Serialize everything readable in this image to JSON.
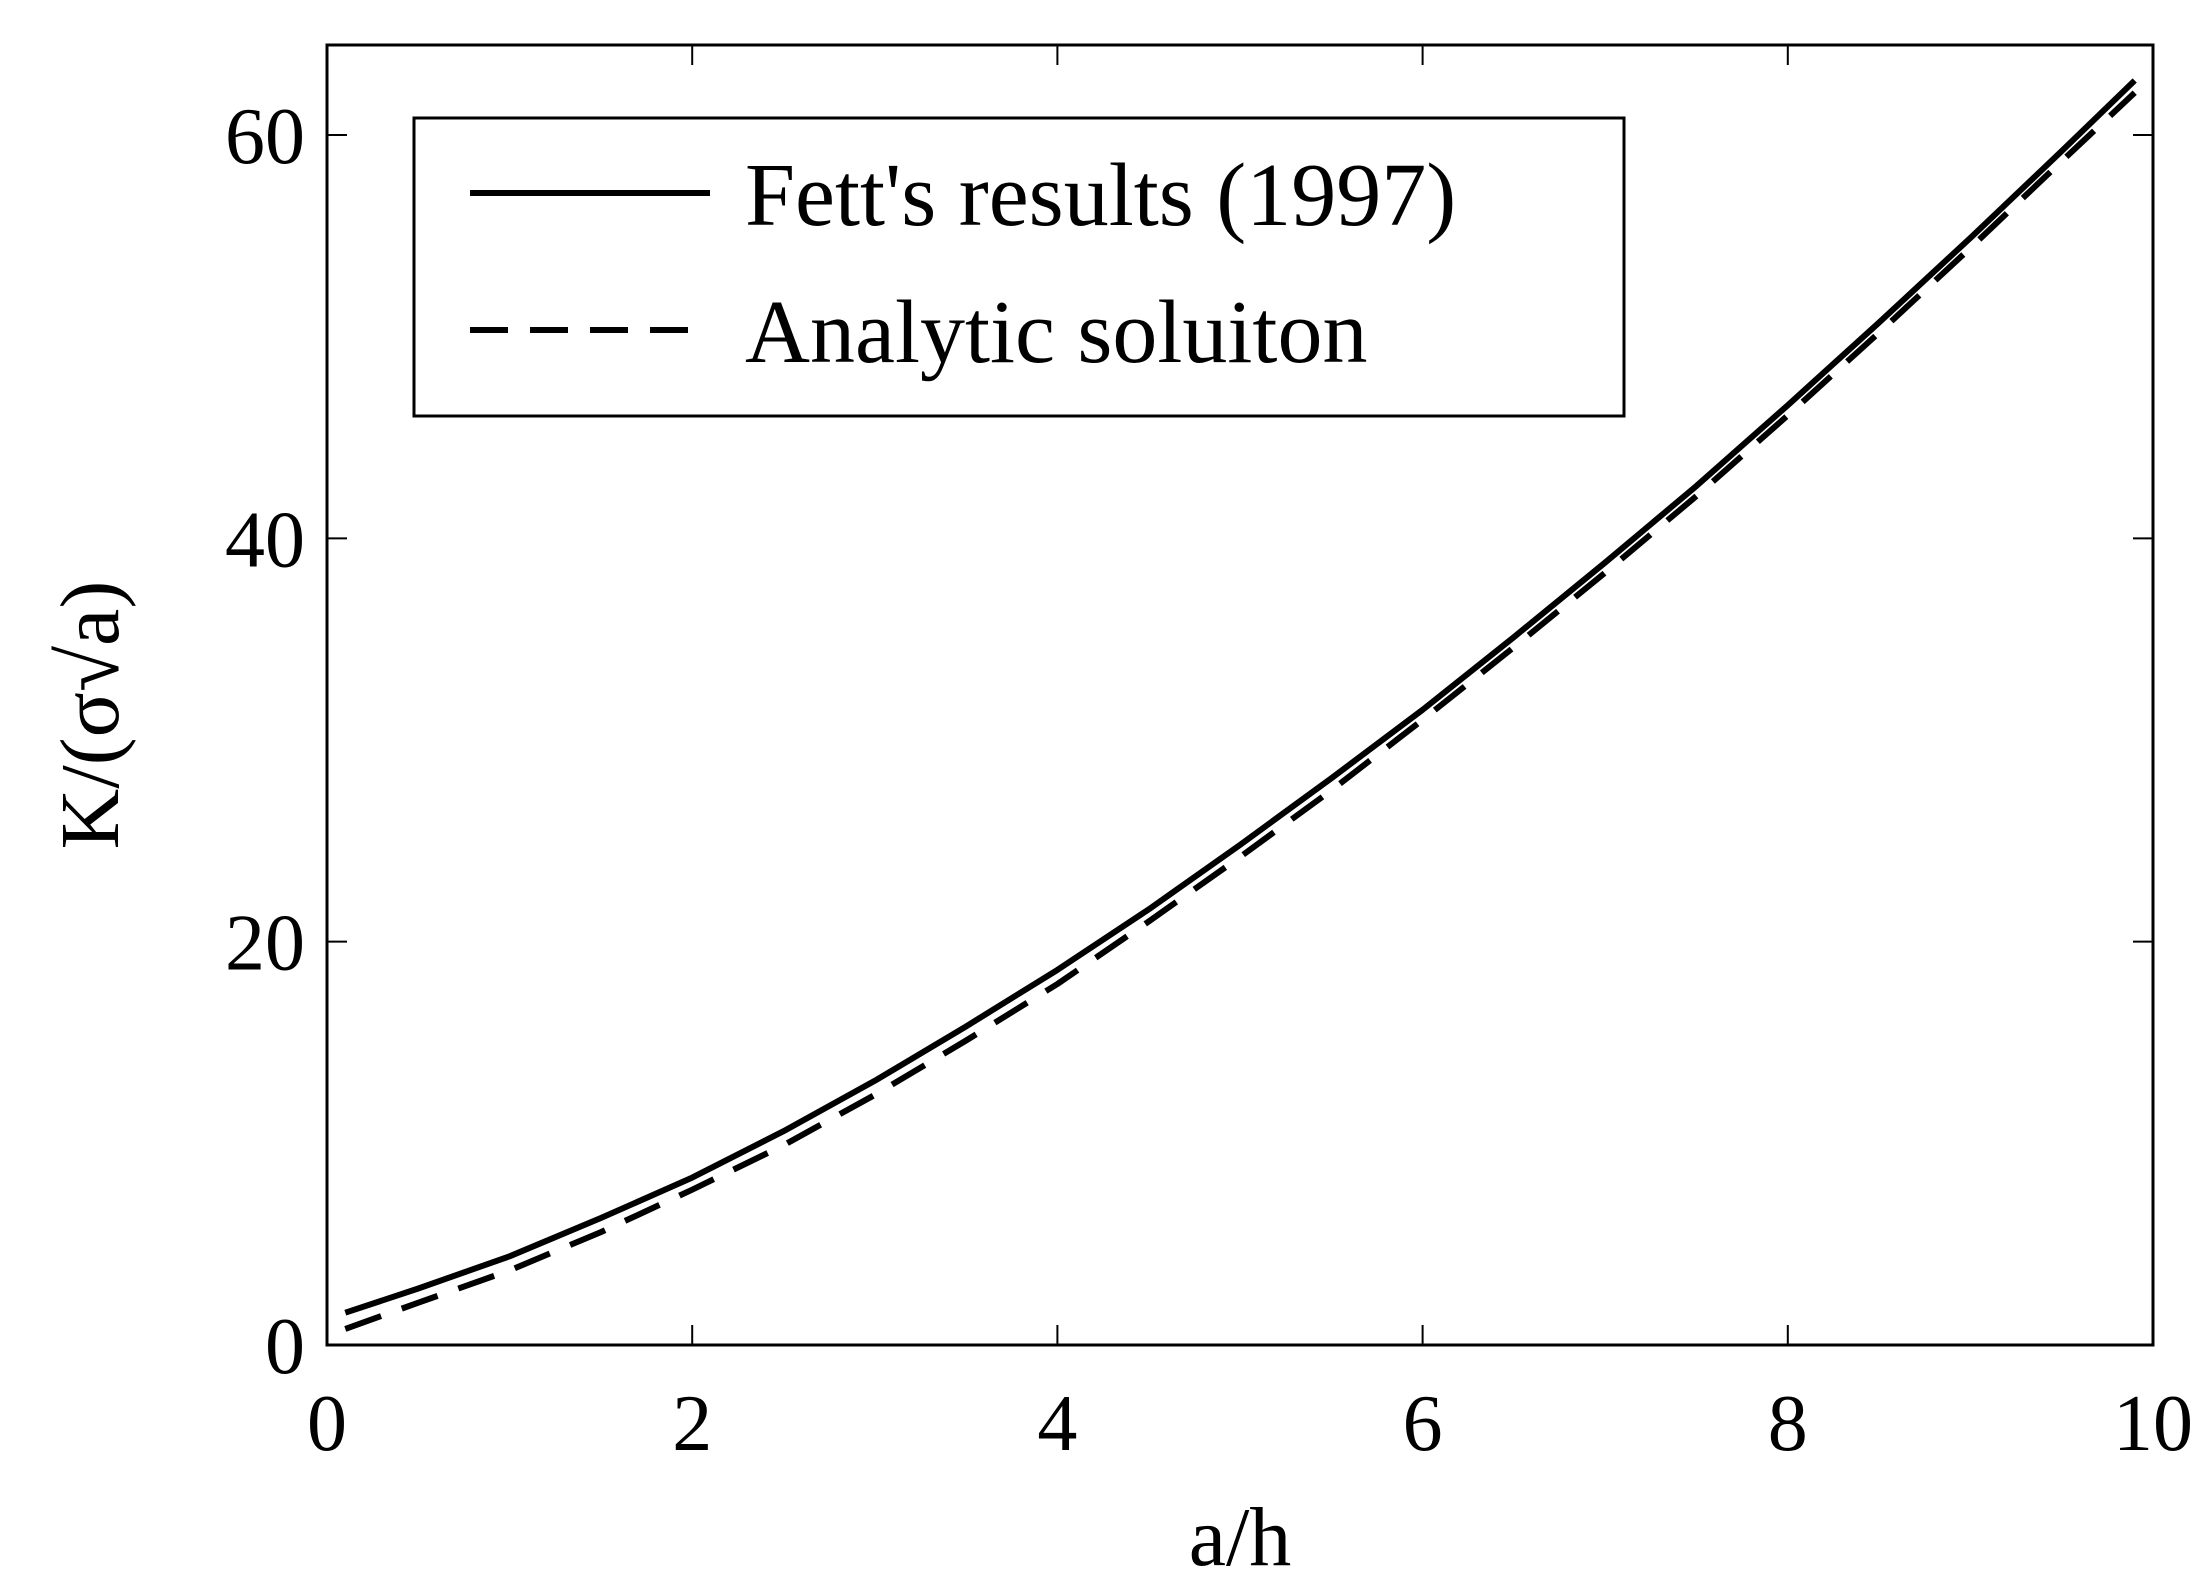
{
  "chart_data": {
    "type": "line",
    "title": "",
    "xlabel": "a/h",
    "ylabel": "K/(σ√a)",
    "xlim": [
      0,
      10
    ],
    "ylim": [
      0,
      65
    ],
    "xticks": [
      0,
      2,
      4,
      6,
      8,
      10
    ],
    "yticks": [
      0,
      20,
      40,
      60
    ],
    "xtick_labels": [
      "0",
      "2",
      "4",
      "6",
      "8",
      "10"
    ],
    "ytick_labels": [
      "0",
      "20",
      "40",
      "60"
    ],
    "grid": false,
    "legend_position": "top-left",
    "x": [
      0.1,
      0.5,
      1,
      1.5,
      2,
      2.5,
      3,
      3.5,
      4,
      4.5,
      5,
      5.5,
      6,
      6.5,
      7,
      7.5,
      8,
      8.5,
      9,
      9.5,
      9.9
    ],
    "series": [
      {
        "name": "Fett's results (1997)",
        "style": "solid",
        "color": "#000000",
        "values": [
          1.6,
          2.8,
          4.4,
          6.3,
          8.3,
          10.6,
          13.1,
          15.8,
          18.6,
          21.6,
          24.8,
          28.1,
          31.5,
          35.1,
          38.8,
          42.6,
          46.6,
          50.7,
          54.9,
          59.2,
          62.7
        ]
      },
      {
        "name": "Analytic soluiton",
        "style": "dashed",
        "color": "#000000",
        "values": [
          0.8,
          2.1,
          3.7,
          5.6,
          7.7,
          9.9,
          12.4,
          15.1,
          17.9,
          21.0,
          24.2,
          27.5,
          31.0,
          34.6,
          38.3,
          42.1,
          46.1,
          50.2,
          54.4,
          58.7,
          62.1
        ]
      }
    ]
  }
}
